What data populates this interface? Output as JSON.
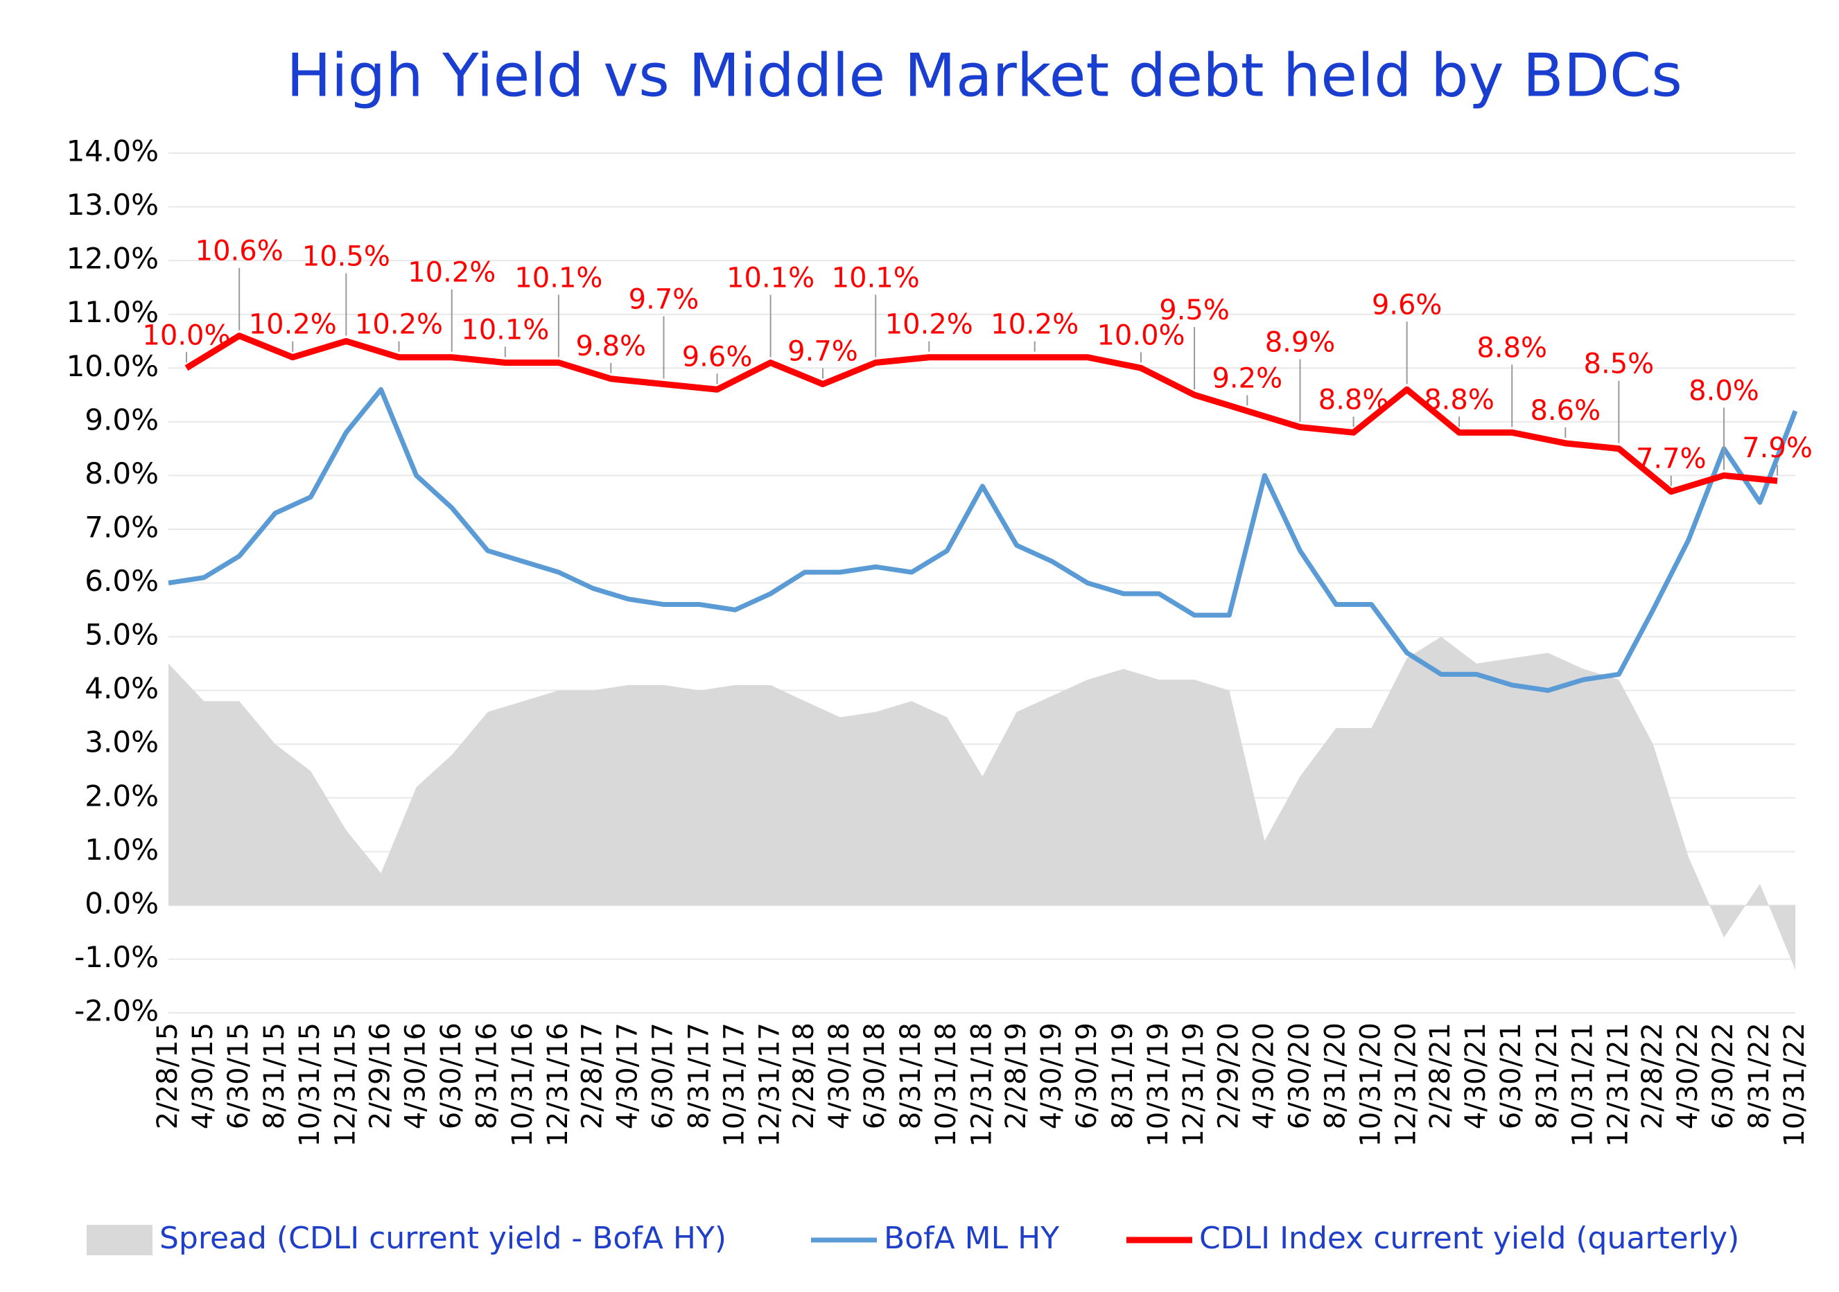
{
  "chart_data": {
    "type": "line",
    "title": "High Yield  vs  Middle Market debt held by BDCs",
    "x": [
      "2/28/15",
      "4/30/15",
      "6/30/15",
      "8/31/15",
      "10/31/15",
      "12/31/15",
      "2/29/16",
      "4/30/16",
      "6/30/16",
      "8/31/16",
      "10/31/16",
      "12/31/16",
      "2/28/17",
      "4/30/17",
      "6/30/17",
      "8/31/17",
      "10/31/17",
      "12/31/17",
      "2/28/18",
      "4/30/18",
      "6/30/18",
      "8/31/18",
      "10/31/18",
      "12/31/18",
      "2/28/19",
      "4/30/19",
      "6/30/19",
      "8/31/19",
      "10/31/19",
      "12/31/19",
      "2/29/20",
      "4/30/20",
      "6/30/20",
      "8/31/20",
      "10/31/20",
      "12/31/20",
      "2/28/21",
      "4/30/21",
      "6/30/21",
      "8/31/21",
      "10/31/21",
      "12/31/21",
      "2/28/22",
      "4/30/22",
      "6/30/22",
      "8/31/22",
      "10/31/22"
    ],
    "ylim": [
      -2,
      14
    ],
    "yticks": [
      {
        "value": -2,
        "label": "-2.0%"
      },
      {
        "value": -1,
        "label": "-1.0%"
      },
      {
        "value": 0,
        "label": "0.0%"
      },
      {
        "value": 1,
        "label": "1.0%"
      },
      {
        "value": 2,
        "label": "2.0%"
      },
      {
        "value": 3,
        "label": "3.0%"
      },
      {
        "value": 4,
        "label": "4.0%"
      },
      {
        "value": 5,
        "label": "5.0%"
      },
      {
        "value": 6,
        "label": "6.0%"
      },
      {
        "value": 7,
        "label": "7.0%"
      },
      {
        "value": 8,
        "label": "8.0%"
      },
      {
        "value": 9,
        "label": "9.0%"
      },
      {
        "value": 10,
        "label": "10.0%"
      },
      {
        "value": 11,
        "label": "11.0%"
      },
      {
        "value": 12,
        "label": "12.0%"
      },
      {
        "value": 13,
        "label": "13.0%"
      },
      {
        "value": 14,
        "label": "14.0%"
      }
    ],
    "grid": true,
    "legend": "bottom",
    "series": [
      {
        "name": "Spread (CDLI current yield - BofA HY)",
        "type": "area",
        "color": "#d9d9d9",
        "values": [
          4.5,
          3.8,
          3.8,
          3.0,
          2.5,
          1.4,
          0.6,
          2.2,
          2.8,
          3.6,
          3.8,
          4.0,
          4.0,
          4.1,
          4.1,
          4.0,
          4.1,
          4.1,
          3.8,
          3.5,
          3.6,
          3.8,
          3.5,
          2.4,
          3.6,
          3.9,
          4.2,
          4.4,
          4.2,
          4.2,
          4.0,
          1.2,
          2.4,
          3.3,
          3.3,
          4.6,
          5.0,
          4.5,
          4.6,
          4.7,
          4.4,
          4.2,
          3.0,
          0.9,
          -0.6,
          0.4,
          -1.2
        ]
      },
      {
        "name": "BofA ML HY",
        "type": "line",
        "color": "#5b9bd5",
        "values": [
          6.0,
          6.1,
          6.5,
          7.3,
          7.6,
          8.8,
          9.6,
          8.0,
          7.4,
          6.6,
          6.4,
          6.2,
          5.9,
          5.7,
          5.6,
          5.6,
          5.5,
          5.8,
          6.2,
          6.2,
          6.3,
          6.2,
          6.6,
          7.8,
          6.7,
          6.4,
          6.0,
          5.8,
          5.8,
          5.4,
          5.4,
          8.0,
          6.6,
          5.6,
          5.6,
          4.7,
          4.3,
          4.3,
          4.1,
          4.0,
          4.2,
          4.3,
          5.5,
          6.8,
          8.5,
          7.5,
          9.2
        ]
      },
      {
        "name": "CDLI Index current yield (quarterly)",
        "type": "line",
        "color": "#ff0000",
        "x": [
          "3/31/15",
          "6/30/15",
          "9/30/15",
          "12/31/15",
          "3/31/16",
          "6/30/16",
          "9/30/16",
          "12/31/16",
          "3/31/17",
          "6/30/17",
          "9/30/17",
          "12/31/17",
          "3/31/18",
          "6/30/18",
          "9/30/18",
          "12/31/18",
          "3/31/19",
          "6/30/19",
          "9/30/19",
          "12/31/19",
          "3/31/20",
          "6/30/20",
          "9/30/20",
          "12/31/20",
          "3/31/21",
          "6/30/21",
          "9/30/21",
          "12/31/21",
          "3/31/22",
          "6/30/22",
          "9/30/22"
        ],
        "values": [
          10.0,
          10.6,
          10.2,
          10.5,
          10.2,
          10.2,
          10.1,
          10.1,
          9.8,
          9.7,
          9.6,
          10.1,
          9.7,
          10.1,
          10.2,
          10.2,
          10.2,
          10.2,
          10.0,
          9.5,
          9.2,
          8.9,
          8.8,
          9.6,
          8.8,
          8.8,
          8.6,
          8.5,
          7.7,
          8.0,
          7.9
        ],
        "value_labels": [
          "10.0%",
          "10.6%",
          "10.2%",
          "10.5%",
          "10.2%",
          "10.2%",
          "10.1%",
          "10.1%",
          "9.8%",
          "9.7%",
          "9.6%",
          "10.1%",
          "9.7%",
          "10.1%",
          "10.2%",
          null,
          "10.2%",
          null,
          "10.0%",
          "9.5%",
          "9.2%",
          "8.9%",
          "8.8%",
          "9.6%",
          "8.8%",
          "8.8%",
          "8.6%",
          "8.5%",
          "7.7%",
          "8.0%",
          "7.9%"
        ]
      }
    ]
  }
}
